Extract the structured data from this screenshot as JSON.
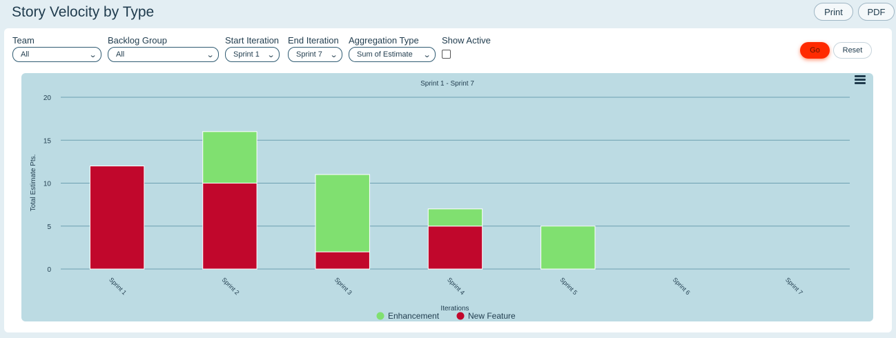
{
  "page": {
    "title": "Story Velocity by Type",
    "print_label": "Print",
    "pdf_label": "PDF"
  },
  "filters": {
    "team": {
      "label": "Team",
      "value": "All"
    },
    "backlog_group": {
      "label": "Backlog Group",
      "value": "All"
    },
    "start_iteration": {
      "label": "Start Iteration",
      "value": "Sprint 1"
    },
    "end_iteration": {
      "label": "End Iteration",
      "value": "Sprint 7"
    },
    "aggregation_type": {
      "label": "Aggregation Type",
      "value": "Sum of Estimate"
    },
    "show_active": {
      "label": "Show Active",
      "checked": false
    }
  },
  "actions": {
    "go_label": "Go",
    "reset_label": "Reset"
  },
  "colors": {
    "enhancement": "#80e070",
    "new_feature": "#c1072c",
    "gridline": "#6b9fb0",
    "chart_bg": "#bcdbe3"
  },
  "chart_data": {
    "type": "bar",
    "stacked": true,
    "title": "Sprint 1 - Sprint 7",
    "xlabel": "Iterations",
    "ylabel": "Total Estimate Pts.",
    "categories": [
      "Sprint 1",
      "Sprint 2",
      "Sprint 3",
      "Sprint 4",
      "Sprint 5",
      "Sprint 6",
      "Sprint 7"
    ],
    "ylim": [
      0,
      20
    ],
    "yticks": [
      "0",
      "5",
      "10",
      "15",
      "20"
    ],
    "grid": true,
    "legend_position": "bottom-center",
    "series": [
      {
        "name": "New Feature",
        "values": [
          12,
          10,
          2,
          5,
          0,
          0,
          0
        ],
        "color": "#c1072c"
      },
      {
        "name": "Enhancement",
        "values": [
          0,
          6,
          9,
          2,
          5,
          0,
          0
        ],
        "color": "#80e070"
      }
    ],
    "legend": [
      "Enhancement",
      "New Feature"
    ]
  }
}
